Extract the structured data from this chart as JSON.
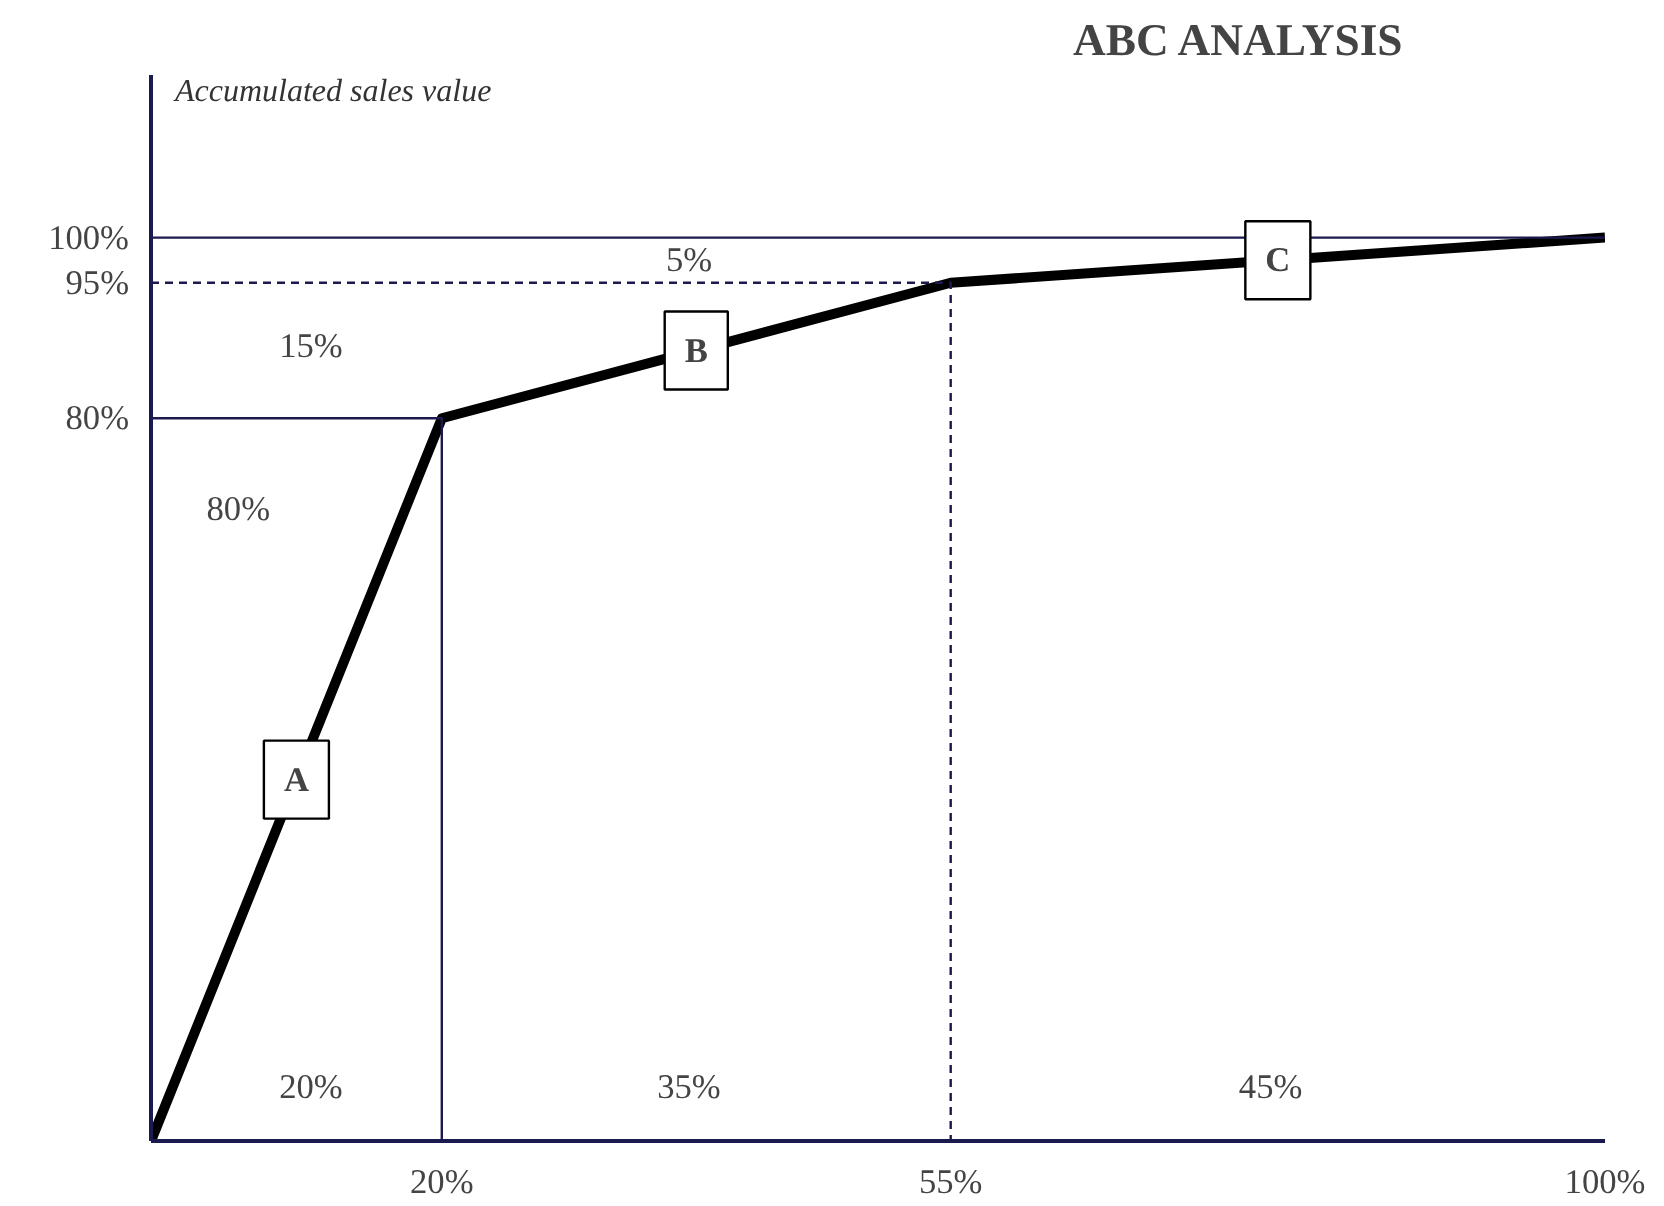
{
  "chart_data": {
    "type": "line",
    "title": "ABC ANALYSIS",
    "ylabel": "Accumulated sales value",
    "xlim": [
      0,
      100
    ],
    "ylim": [
      0,
      118
    ],
    "xticks": [
      {
        "value": 20,
        "label": "20%"
      },
      {
        "value": 55,
        "label": "55%"
      },
      {
        "value": 100,
        "label": "100%"
      }
    ],
    "yticks": [
      {
        "value": 80,
        "label": "80%"
      },
      {
        "value": 95,
        "label": "95%"
      },
      {
        "value": 100,
        "label": "100%"
      }
    ],
    "grid": false,
    "series": [
      {
        "color": "#000000",
        "x": [
          0,
          20,
          55,
          100
        ],
        "values": [
          0,
          80,
          95,
          100
        ]
      },
      {
        "color": "#1a1a4e",
        "x": [
          0,
          20,
          20
        ],
        "values": [
          80,
          80,
          0
        ],
        "line_style": "solid"
      },
      {
        "color": "#1a1a4e",
        "x": [
          0,
          55,
          55
        ],
        "values": [
          95,
          95,
          0
        ],
        "line_style": "dashed"
      },
      {
        "color": "#1a1a4e",
        "x": [
          0,
          100
        ],
        "values": [
          100,
          100
        ],
        "line_style": "solid"
      }
    ],
    "annotations": [
      "80%",
      "15%",
      "5%",
      "20%",
      "35%",
      "45%",
      "A",
      "B",
      "C"
    ]
  }
}
